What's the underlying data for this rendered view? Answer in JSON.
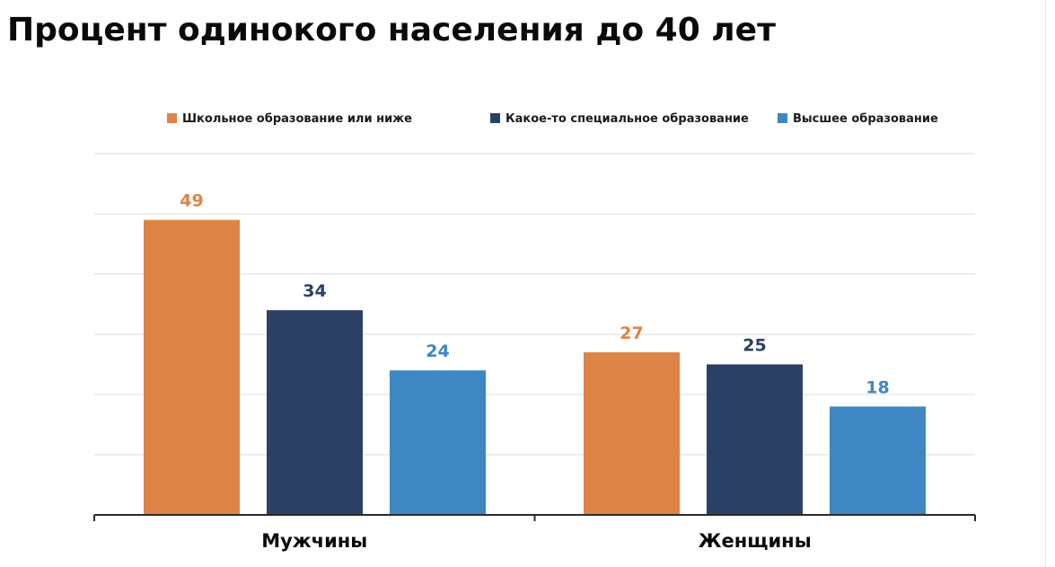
{
  "chart_data": {
    "type": "bar",
    "title": "Процент одинокого населения до 40 лет",
    "categories": [
      "Мужчины",
      "Женщины"
    ],
    "series": [
      {
        "name": "Школьное образование или ниже",
        "values": [
          49,
          27
        ],
        "color": "#dd8446"
      },
      {
        "name": "Какое-то специальное образование",
        "values": [
          34,
          25
        ],
        "color": "#2a4165"
      },
      {
        "name": "Высшее образование",
        "values": [
          24,
          18
        ],
        "color": "#3e87c3"
      }
    ],
    "ylim": [
      0,
      60
    ],
    "grid": true,
    "legend_position": "top"
  }
}
